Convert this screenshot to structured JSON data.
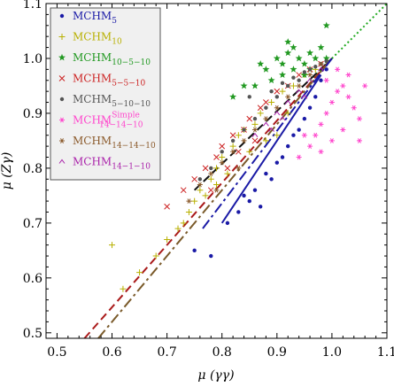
{
  "chart_data": {
    "type": "scatter",
    "xlabel": "μ (γγ)",
    "ylabel": "μ (Zγ)",
    "xlim": [
      0.48,
      1.1
    ],
    "ylim": [
      0.49,
      1.1
    ],
    "xticks": [
      "0.5",
      "0.6",
      "0.7",
      "0.8",
      "0.9",
      "1.0",
      "1.1"
    ],
    "xtick_values": [
      0.5,
      0.6,
      0.7,
      0.8,
      0.9,
      1.0,
      1.1
    ],
    "yticks": [
      "0.5",
      "0.6",
      "0.7",
      "0.8",
      "0.9",
      "1.0",
      "1.1"
    ],
    "ytick_values": [
      0.5,
      0.6,
      0.7,
      0.8,
      0.9,
      1.0,
      1.1
    ],
    "legend_position": "top-left",
    "series": [
      {
        "name": "MCHM",
        "sub": "5",
        "sup": "",
        "color": "#1a1aa6",
        "marker": "dot",
        "points": [
          [
            0.81,
            0.7
          ],
          [
            0.83,
            0.72
          ],
          [
            0.85,
            0.74
          ],
          [
            0.86,
            0.76
          ],
          [
            0.88,
            0.79
          ],
          [
            0.87,
            0.73
          ],
          [
            0.9,
            0.81
          ],
          [
            0.92,
            0.84
          ],
          [
            0.94,
            0.87
          ],
          [
            0.95,
            0.89
          ],
          [
            0.97,
            0.93
          ],
          [
            0.98,
            0.96
          ],
          [
            0.96,
            0.91
          ],
          [
            0.93,
            0.86
          ],
          [
            0.89,
            0.78
          ],
          [
            0.84,
            0.75
          ],
          [
            0.75,
            0.65
          ],
          [
            0.78,
            0.64
          ],
          [
            0.91,
            0.82
          ],
          [
            0.99,
            0.98
          ]
        ]
      },
      {
        "name": "MCHM",
        "sub": "10",
        "sup": "",
        "color": "#b8b000",
        "marker": "plus",
        "points": [
          [
            0.62,
            0.58
          ],
          [
            0.65,
            0.61
          ],
          [
            0.6,
            0.66
          ],
          [
            0.68,
            0.64
          ],
          [
            0.7,
            0.67
          ],
          [
            0.72,
            0.69
          ],
          [
            0.74,
            0.72
          ],
          [
            0.75,
            0.74
          ],
          [
            0.76,
            0.76
          ],
          [
            0.78,
            0.78
          ],
          [
            0.79,
            0.8
          ],
          [
            0.8,
            0.82
          ],
          [
            0.82,
            0.84
          ],
          [
            0.83,
            0.86
          ],
          [
            0.84,
            0.87
          ],
          [
            0.86,
            0.88
          ],
          [
            0.87,
            0.9
          ],
          [
            0.89,
            0.92
          ],
          [
            0.91,
            0.94
          ],
          [
            0.93,
            0.95
          ],
          [
            0.95,
            0.97
          ],
          [
            0.97,
            0.98
          ],
          [
            0.77,
            0.75
          ],
          [
            0.79,
            0.77
          ],
          [
            0.81,
            0.79
          ],
          [
            0.85,
            0.83
          ],
          [
            0.73,
            0.7
          ],
          [
            0.88,
            0.85
          ],
          [
            0.9,
            0.86
          ],
          [
            0.92,
            0.9
          ]
        ]
      },
      {
        "name": "MCHM",
        "sub": "10−5−10",
        "sup": "",
        "color": "#229922",
        "marker": "star",
        "points": [
          [
            0.87,
            0.99
          ],
          [
            0.88,
            0.98
          ],
          [
            0.9,
            1.0
          ],
          [
            0.91,
            0.99
          ],
          [
            0.92,
            1.01
          ],
          [
            0.93,
            0.98
          ],
          [
            0.94,
            1.0
          ],
          [
            0.95,
            0.99
          ],
          [
            0.96,
            1.01
          ],
          [
            0.97,
            1.0
          ],
          [
            0.98,
            1.02
          ],
          [
            0.99,
            1.0
          ],
          [
            0.95,
            0.97
          ],
          [
            0.93,
            1.02
          ],
          [
            0.89,
            0.96
          ],
          [
            0.91,
            0.97
          ],
          [
            0.86,
            0.95
          ],
          [
            0.84,
            0.95
          ],
          [
            0.82,
            0.93
          ],
          [
            0.96,
            0.98
          ],
          [
            0.99,
            1.06
          ],
          [
            0.92,
            1.03
          ]
        ]
      },
      {
        "name": "MCHM",
        "sub": "5−5−10",
        "sup": "",
        "color": "#cc2222",
        "marker": "x",
        "points": [
          [
            0.7,
            0.73
          ],
          [
            0.73,
            0.76
          ],
          [
            0.75,
            0.78
          ],
          [
            0.77,
            0.8
          ],
          [
            0.79,
            0.82
          ],
          [
            0.8,
            0.84
          ],
          [
            0.82,
            0.86
          ],
          [
            0.84,
            0.87
          ],
          [
            0.85,
            0.89
          ],
          [
            0.87,
            0.91
          ],
          [
            0.88,
            0.92
          ],
          [
            0.9,
            0.94
          ],
          [
            0.92,
            0.95
          ],
          [
            0.94,
            0.97
          ],
          [
            0.96,
            0.98
          ],
          [
            0.98,
            0.99
          ],
          [
            0.83,
            0.83
          ],
          [
            0.86,
            0.85
          ],
          [
            0.78,
            0.76
          ],
          [
            0.81,
            0.8
          ]
        ]
      },
      {
        "name": "MCHM",
        "sub": "5−10−10",
        "sup": "",
        "color": "#555555",
        "marker": "dot",
        "points": [
          [
            0.76,
            0.78
          ],
          [
            0.78,
            0.8
          ],
          [
            0.8,
            0.83
          ],
          [
            0.82,
            0.85
          ],
          [
            0.84,
            0.87
          ],
          [
            0.86,
            0.89
          ],
          [
            0.88,
            0.91
          ],
          [
            0.9,
            0.93
          ],
          [
            0.92,
            0.95
          ],
          [
            0.94,
            0.96
          ],
          [
            0.96,
            0.98
          ],
          [
            0.98,
            0.99
          ],
          [
            0.99,
            0.995
          ],
          [
            0.97,
            0.985
          ],
          [
            0.95,
            0.975
          ],
          [
            0.93,
            0.965
          ],
          [
            0.91,
            0.955
          ],
          [
            0.89,
            0.94
          ],
          [
            0.85,
            0.93
          ]
        ]
      },
      {
        "name": "MCHM",
        "sub": "14−14−10",
        "sup": "Simple",
        "color": "#ff44cc",
        "marker": "asterisk",
        "points": [
          [
            0.96,
            0.84
          ],
          [
            0.97,
            0.86
          ],
          [
            0.98,
            0.88
          ],
          [
            0.99,
            0.9
          ],
          [
            1.0,
            0.92
          ],
          [
            1.01,
            0.94
          ],
          [
            1.02,
            0.95
          ],
          [
            1.03,
            0.93
          ],
          [
            1.04,
            0.91
          ],
          [
            1.05,
            0.89
          ],
          [
            1.02,
            0.87
          ],
          [
            1.0,
            0.85
          ],
          [
            0.98,
            0.83
          ],
          [
            1.06,
            0.95
          ],
          [
            1.03,
            0.97
          ],
          [
            1.01,
            0.98
          ],
          [
            0.95,
            0.86
          ],
          [
            0.94,
            0.82
          ],
          [
            1.05,
            0.85
          ],
          [
            0.99,
            0.96
          ]
        ]
      },
      {
        "name": "MCHM",
        "sub": "14−14−10",
        "sup": "",
        "color": "#8b5a2b",
        "marker": "asterisk",
        "points": [
          [
            0.74,
            0.74
          ],
          [
            0.76,
            0.77
          ],
          [
            0.78,
            0.79
          ],
          [
            0.8,
            0.81
          ],
          [
            0.82,
            0.83
          ],
          [
            0.84,
            0.85
          ],
          [
            0.86,
            0.87
          ],
          [
            0.88,
            0.89
          ],
          [
            0.9,
            0.91
          ],
          [
            0.92,
            0.93
          ],
          [
            0.94,
            0.95
          ],
          [
            0.96,
            0.97
          ],
          [
            0.98,
            0.99
          ],
          [
            0.79,
            0.76
          ],
          [
            0.83,
            0.8
          ]
        ]
      },
      {
        "name": "MCHM",
        "sub": "14−1−10",
        "sup": "",
        "color": "#aa22aa",
        "marker": "caret",
        "points": [
          [
            0.86,
            0.86
          ],
          [
            0.88,
            0.88
          ],
          [
            0.9,
            0.9
          ],
          [
            0.92,
            0.92
          ],
          [
            0.94,
            0.94
          ],
          [
            0.96,
            0.96
          ],
          [
            0.98,
            0.98
          ],
          [
            0.91,
            0.89
          ],
          [
            0.95,
            0.93
          ],
          [
            0.89,
            0.87
          ]
        ]
      }
    ],
    "lines": [
      {
        "style": "dotted",
        "color": "#22aa22",
        "from": [
          0.96,
          0.96
        ],
        "to": [
          1.1,
          1.1
        ]
      },
      {
        "style": "dashed",
        "color": "#111111",
        "from": [
          0.75,
          0.76
        ],
        "to": [
          1.0,
          1.0
        ]
      },
      {
        "style": "dashed",
        "color": "#aa1a1a",
        "from": [
          0.55,
          0.49
        ],
        "to": [
          1.0,
          1.0
        ]
      },
      {
        "style": "dashdot",
        "color": "#7a5a2a",
        "from": [
          0.575,
          0.49
        ],
        "to": [
          1.0,
          1.0
        ]
      },
      {
        "style": "dashdot",
        "color": "#1a1aa6",
        "from": [
          0.765,
          0.69
        ],
        "to": [
          1.0,
          1.0
        ]
      },
      {
        "style": "solid",
        "color": "#1a1aa6",
        "from": [
          0.8,
          0.7
        ],
        "to": [
          0.98,
          0.97
        ]
      }
    ]
  }
}
